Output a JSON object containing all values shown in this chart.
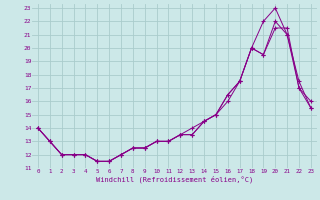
{
  "xlabel": "Windchill (Refroidissement éolien,°C)",
  "bg_color": "#cce8e8",
  "grid_color": "#aacccc",
  "line_color": "#880088",
  "xlim": [
    -0.5,
    23.5
  ],
  "ylim": [
    11,
    23.3
  ],
  "yticks": [
    11,
    12,
    13,
    14,
    15,
    16,
    17,
    18,
    19,
    20,
    21,
    22,
    23
  ],
  "xticks": [
    0,
    1,
    2,
    3,
    4,
    5,
    6,
    7,
    8,
    9,
    10,
    11,
    12,
    13,
    14,
    15,
    16,
    17,
    18,
    19,
    20,
    21,
    22,
    23
  ],
  "line1_x": [
    0,
    1,
    2,
    3,
    4,
    5,
    6,
    7,
    8,
    9,
    10,
    11,
    12,
    13,
    14,
    15,
    16,
    17,
    18,
    19,
    20,
    21,
    22,
    23
  ],
  "line1_y": [
    14.0,
    13.0,
    12.0,
    12.0,
    12.0,
    11.5,
    11.5,
    12.0,
    12.5,
    12.5,
    13.0,
    13.0,
    13.5,
    14.0,
    14.5,
    15.0,
    16.0,
    17.5,
    20.0,
    22.0,
    23.0,
    21.0,
    17.5,
    15.5
  ],
  "line2_x": [
    0,
    1,
    2,
    3,
    4,
    5,
    6,
    7,
    8,
    9,
    10,
    11,
    12,
    13,
    14,
    15,
    16,
    17,
    18,
    19,
    20,
    21,
    22,
    23
  ],
  "line2_y": [
    14.0,
    13.0,
    12.0,
    12.0,
    12.0,
    11.5,
    11.5,
    12.0,
    12.5,
    12.5,
    13.0,
    13.0,
    13.5,
    13.5,
    14.5,
    15.0,
    16.5,
    17.5,
    20.0,
    19.5,
    22.0,
    21.0,
    17.0,
    15.5
  ],
  "line3_x": [
    0,
    1,
    2,
    3,
    4,
    5,
    6,
    7,
    8,
    9,
    10,
    11,
    12,
    13,
    14,
    15,
    16,
    17,
    18,
    19,
    20,
    21,
    22,
    23
  ],
  "line3_y": [
    14.0,
    13.0,
    12.0,
    12.0,
    12.0,
    11.5,
    11.5,
    12.0,
    12.5,
    12.5,
    13.0,
    13.0,
    13.5,
    13.5,
    14.5,
    15.0,
    16.5,
    17.5,
    20.0,
    19.5,
    21.5,
    21.5,
    17.0,
    16.0
  ]
}
